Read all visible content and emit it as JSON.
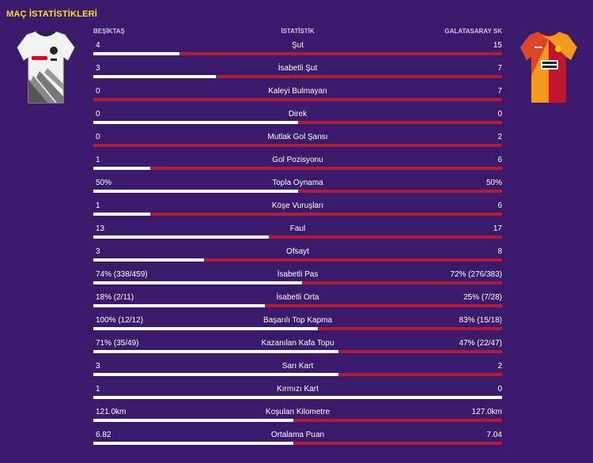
{
  "title": "MAÇ İSTATİSTİKLERİ",
  "header": {
    "home": "BEŞİKTAŞ",
    "mid": "İSTATİSTİK",
    "away": "GALATASARAY SK"
  },
  "kits": {
    "home_icon": "besiktas-shirt-icon",
    "away_icon": "galatasaray-shirt-icon"
  },
  "colors": {
    "background": "#3b1a6b",
    "home_bar": "#ffffff",
    "away_bar": "#b01c3b",
    "title": "#f5e623"
  },
  "stats": [
    {
      "label": "Şut",
      "home": "4",
      "away": "15",
      "home_share": 0.21
    },
    {
      "label": "İsabetli Şut",
      "home": "3",
      "away": "7",
      "home_share": 0.3
    },
    {
      "label": "Kaleyi Bulmayan",
      "home": "0",
      "away": "7",
      "home_share": 0.0
    },
    {
      "label": "Direk",
      "home": "0",
      "away": "0",
      "home_share": 0.5
    },
    {
      "label": "Mutlak Gol Şansı",
      "home": "0",
      "away": "2",
      "home_share": 0.0
    },
    {
      "label": "Gol Pozisyonu",
      "home": "1",
      "away": "6",
      "home_share": 0.14
    },
    {
      "label": "Topla Oynama",
      "home": "50%",
      "away": "50%",
      "home_share": 0.5
    },
    {
      "label": "Köşe Vuruşları",
      "home": "1",
      "away": "6",
      "home_share": 0.14
    },
    {
      "label": "Faul",
      "home": "13",
      "away": "17",
      "home_share": 0.43
    },
    {
      "label": "Ofsayt",
      "home": "3",
      "away": "8",
      "home_share": 0.27
    },
    {
      "label": "İsabetli Pas",
      "home": "74% (338/459)",
      "away": "72% (276/383)",
      "home_share": 0.51
    },
    {
      "label": "İsabetli Orta",
      "home": "18% (2/11)",
      "away": "25% (7/28)",
      "home_share": 0.42
    },
    {
      "label": "Başarılı Top Kapma",
      "home": "100% (12/12)",
      "away": "83% (15/18)",
      "home_share": 0.55
    },
    {
      "label": "Kazanılan Kafa Topu",
      "home": "71% (35/49)",
      "away": "47% (22/47)",
      "home_share": 0.6
    },
    {
      "label": "Sarı Kart",
      "home": "3",
      "away": "2",
      "home_share": 0.6
    },
    {
      "label": "Kırmızı Kart",
      "home": "1",
      "away": "0",
      "home_share": 1.0
    },
    {
      "label": "Koşulan Kilometre",
      "home": "121.0km",
      "away": "127.0km",
      "home_share": 0.49
    },
    {
      "label": "Ortalama Puan",
      "home": "6.82",
      "away": "7.04",
      "home_share": 0.49
    }
  ]
}
